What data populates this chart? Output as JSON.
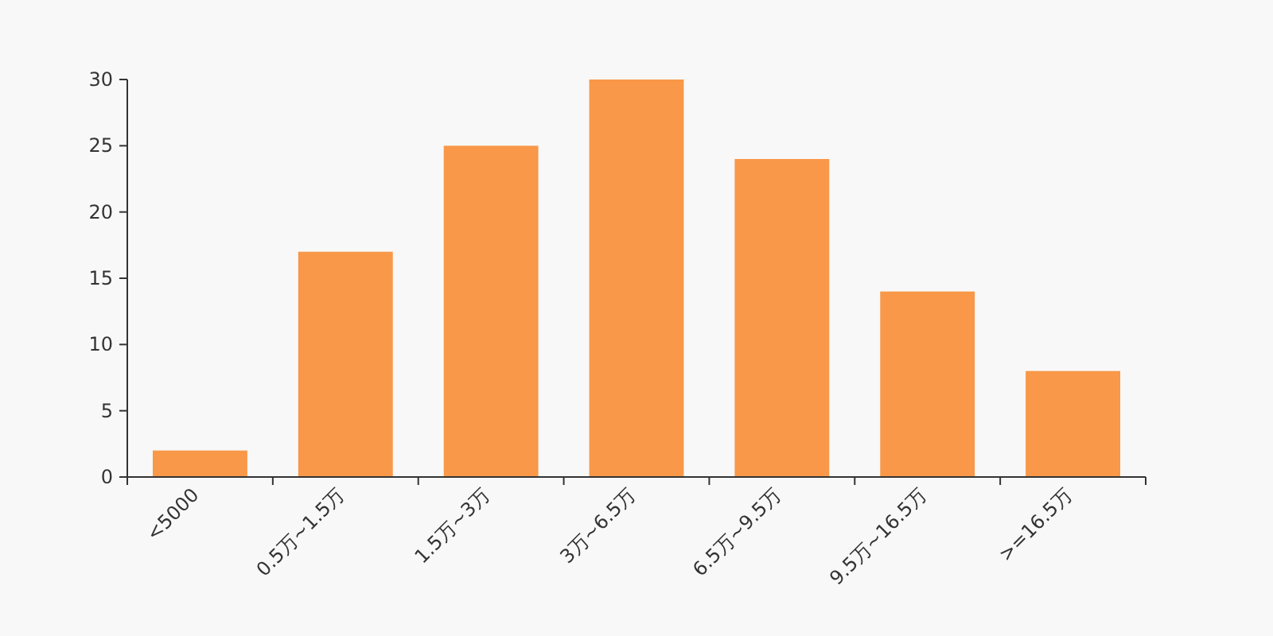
{
  "chart_data": {
    "type": "bar",
    "categories": [
      "<5000",
      "0.5万~1.5万",
      "1.5万~3万",
      "3万~6.5万",
      "6.5万~9.5万",
      "9.5万~16.5万",
      ">=16.5万"
    ],
    "values": [
      2,
      17,
      25,
      30,
      24,
      14,
      8
    ],
    "color": "#f89848",
    "ylim": [
      0,
      30
    ],
    "yticks": [
      0,
      5,
      10,
      15,
      20,
      25,
      30
    ],
    "grid": false
  }
}
